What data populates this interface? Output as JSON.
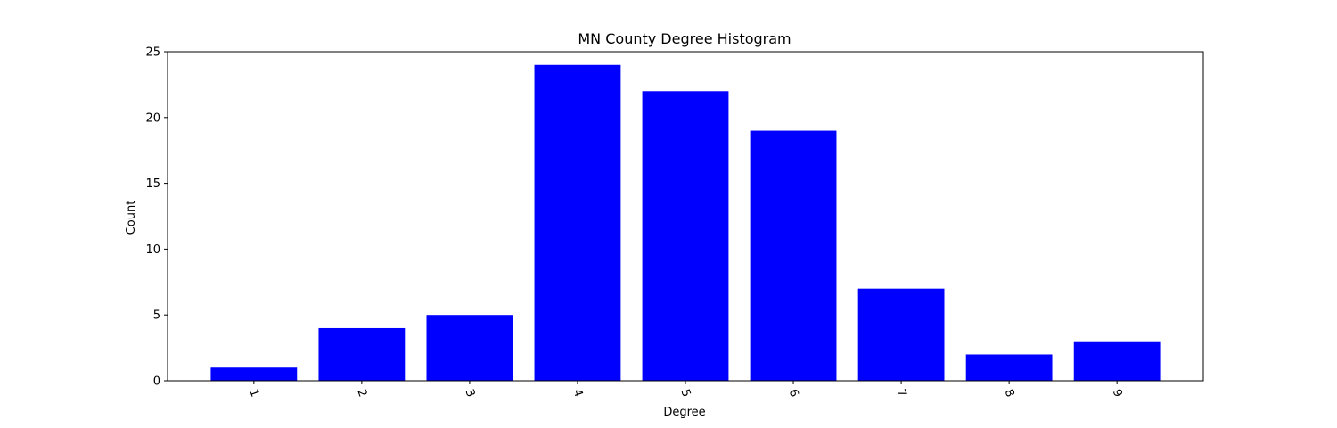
{
  "chart_data": {
    "type": "bar",
    "title": "MN County Degree Histogram",
    "xlabel": "Degree",
    "ylabel": "Count",
    "categories": [
      "1",
      "2",
      "3",
      "4",
      "5",
      "6",
      "7",
      "8",
      "9"
    ],
    "values": [
      1,
      4,
      5,
      24,
      22,
      19,
      7,
      2,
      3
    ],
    "ylim": [
      0,
      25
    ],
    "yticks": [
      0,
      5,
      10,
      15,
      20,
      25
    ],
    "xtick_rotation_deg": -70,
    "bar_color": "#0000ff",
    "grid": false,
    "legend": "none"
  }
}
